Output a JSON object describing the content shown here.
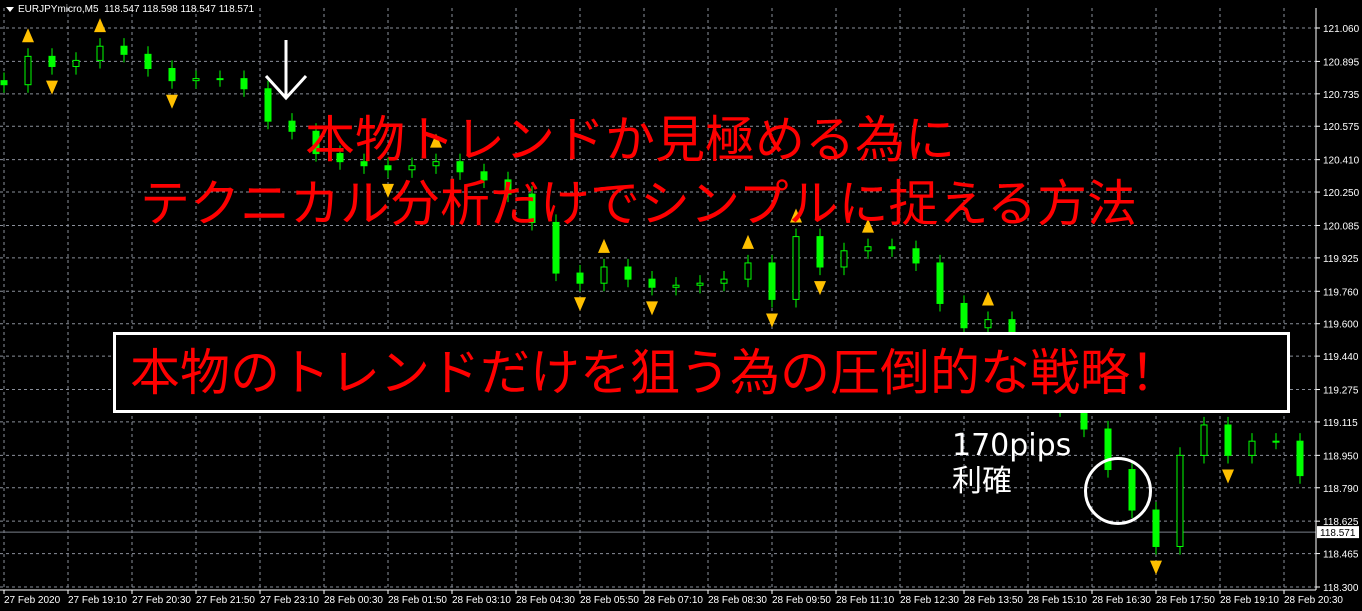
{
  "header": {
    "symbol": "EURJPYmicro,M5",
    "ohlc": "118.547 118.598 118.547 118.571"
  },
  "overlay": {
    "line1": "本物トレンドか見極める為に",
    "line2": "テクニカル分析だけでシンプルに捉える方法",
    "boxed": "本物のトレンドだけを狙う為の圧倒的な戦略！",
    "pips": "170pips",
    "take_profit": "利確"
  },
  "colors": {
    "background": "#000000",
    "grid": "#8a8f9a",
    "candle": "#00ff00",
    "text_red": "#ff0000",
    "fractal": "#ffc000"
  },
  "chart_data": {
    "type": "candlestick",
    "title": "",
    "ylim": [
      118.3,
      121.06
    ],
    "grid": true,
    "current_price": "118.571",
    "y_ticks": [
      "121.060",
      "120.895",
      "120.735",
      "120.575",
      "120.410",
      "120.250",
      "120.085",
      "119.925",
      "119.760",
      "119.600",
      "119.440",
      "119.275",
      "119.115",
      "118.950",
      "118.790",
      "118.625",
      "118.465",
      "118.300"
    ],
    "x_ticks": [
      "27 Feb 2020",
      "27 Feb 19:10",
      "27 Feb 20:30",
      "27 Feb 21:50",
      "27 Feb 23:10",
      "28 Feb 00:30",
      "28 Feb 01:50",
      "28 Feb 03:10",
      "28 Feb 04:30",
      "28 Feb 05:50",
      "28 Feb 07:10",
      "28 Feb 08:30",
      "28 Feb 09:50",
      "28 Feb 11:10",
      "28 Feb 12:30",
      "28 Feb 13:50",
      "28 Feb 15:10",
      "28 Feb 16:30",
      "28 Feb 17:50",
      "28 Feb 19:10",
      "28 Feb 20:30"
    ],
    "x": [
      "27 17:50",
      "27 18:20",
      "27 18:50",
      "27 19:20",
      "27 19:50",
      "27 20:20",
      "27 20:50",
      "27 21:20",
      "27 21:50",
      "27 22:20",
      "27 22:50",
      "27 23:20",
      "27 23:50",
      "28 00:20",
      "28 00:50",
      "28 01:20",
      "28 01:50",
      "28 02:20",
      "28 02:50",
      "28 03:20",
      "28 03:50",
      "28 04:20",
      "28 04:50",
      "28 05:20",
      "28 05:50",
      "28 06:20",
      "28 06:50",
      "28 07:20",
      "28 07:50",
      "28 08:20",
      "28 08:50",
      "28 09:20",
      "28 09:50",
      "28 10:20",
      "28 10:50",
      "28 11:20",
      "28 11:50",
      "28 12:20",
      "28 12:50",
      "28 13:20",
      "28 13:50",
      "28 14:20",
      "28 14:50",
      "28 15:20",
      "28 15:50",
      "28 16:20",
      "28 16:50",
      "28 17:20",
      "28 17:50",
      "28 18:20",
      "28 18:50",
      "28 19:20",
      "28 19:50",
      "28 20:20",
      "28 20:50"
    ],
    "close": [
      120.78,
      120.92,
      120.87,
      120.9,
      120.97,
      120.93,
      120.86,
      120.8,
      120.81,
      120.81,
      120.76,
      120.6,
      120.55,
      120.44,
      120.4,
      120.38,
      120.36,
      120.38,
      120.4,
      120.35,
      120.31,
      120.24,
      120.1,
      119.85,
      119.8,
      119.88,
      119.82,
      119.78,
      119.79,
      119.8,
      119.82,
      119.9,
      119.72,
      120.03,
      119.88,
      119.96,
      119.98,
      119.97,
      119.9,
      119.7,
      119.58,
      119.62,
      119.42,
      119.28,
      119.18,
      119.08,
      118.88,
      118.68,
      118.5,
      118.95,
      119.1,
      118.95,
      119.02,
      119.02,
      118.85
    ]
  }
}
